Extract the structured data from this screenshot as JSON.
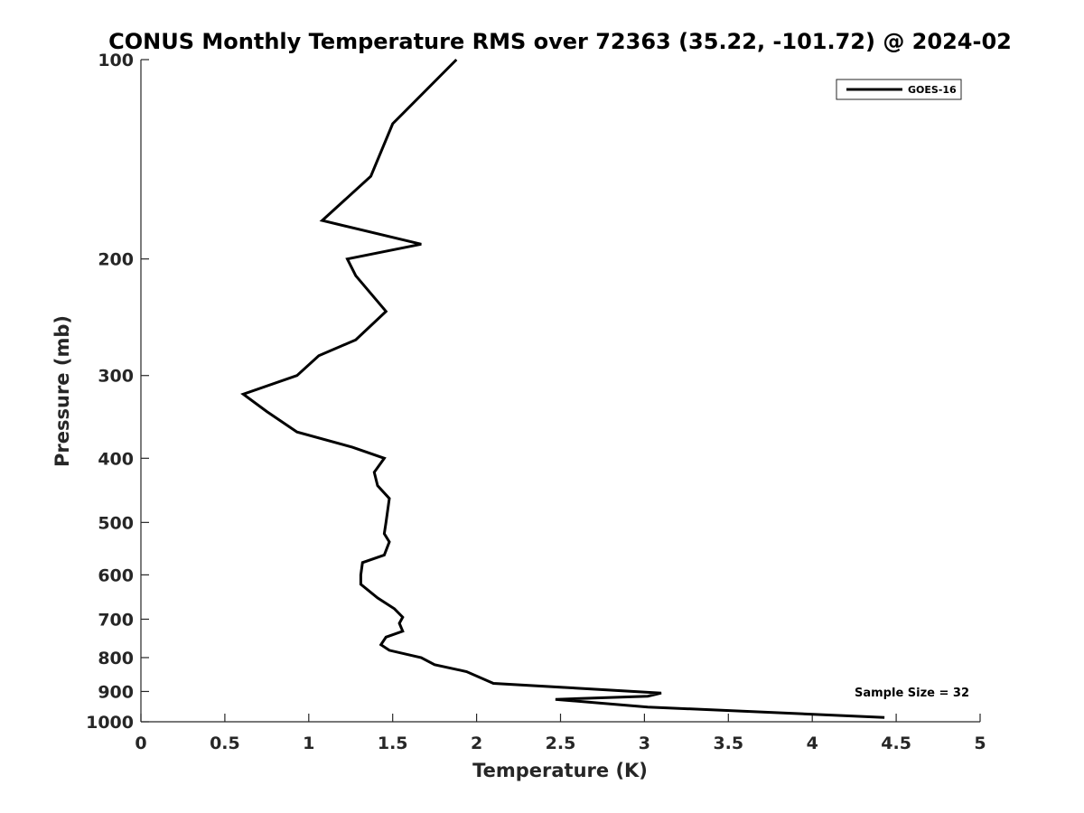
{
  "chart_data": {
    "type": "line",
    "title": "CONUS Monthly Temperature RMS over 72363 (35.22, -101.72) @ 2024-02",
    "xlabel": "Temperature (K)",
    "ylabel": "Pressure (mb)",
    "xlim": [
      0,
      5
    ],
    "ylim": [
      100,
      1000
    ],
    "y_scale": "log",
    "y_reversed": true,
    "x_ticks": [
      0,
      0.5,
      1,
      1.5,
      2,
      2.5,
      3,
      3.5,
      4,
      4.5,
      5
    ],
    "x_tick_labels": [
      "0",
      "0.5",
      "1",
      "1.5",
      "2",
      "2.5",
      "3",
      "3.5",
      "4",
      "4.5",
      "5"
    ],
    "y_ticks": [
      100,
      200,
      300,
      400,
      500,
      600,
      700,
      800,
      900,
      1000
    ],
    "y_tick_labels": [
      "100",
      "200",
      "300",
      "400",
      "500",
      "600",
      "700",
      "800",
      "900",
      "1000"
    ],
    "grid": false,
    "legend_position": "top-right",
    "series": [
      {
        "name": "GOES-16",
        "color": "#000000",
        "points": [
          [
            1.88,
            100
          ],
          [
            1.5,
            125
          ],
          [
            1.37,
            150
          ],
          [
            1.08,
            175
          ],
          [
            1.67,
            190
          ],
          [
            1.23,
            200
          ],
          [
            1.28,
            212
          ],
          [
            1.46,
            240
          ],
          [
            1.28,
            265
          ],
          [
            1.06,
            280
          ],
          [
            0.93,
            300
          ],
          [
            0.61,
            320
          ],
          [
            0.75,
            340
          ],
          [
            0.93,
            365
          ],
          [
            1.26,
            385
          ],
          [
            1.45,
            400
          ],
          [
            1.39,
            420
          ],
          [
            1.41,
            440
          ],
          [
            1.48,
            460
          ],
          [
            1.46,
            500
          ],
          [
            1.45,
            520
          ],
          [
            1.48,
            535
          ],
          [
            1.45,
            560
          ],
          [
            1.32,
            575
          ],
          [
            1.31,
            600
          ],
          [
            1.31,
            620
          ],
          [
            1.41,
            650
          ],
          [
            1.51,
            675
          ],
          [
            1.56,
            695
          ],
          [
            1.54,
            710
          ],
          [
            1.56,
            730
          ],
          [
            1.46,
            745
          ],
          [
            1.43,
            765
          ],
          [
            1.48,
            780
          ],
          [
            1.67,
            800
          ],
          [
            1.75,
            820
          ],
          [
            1.94,
            840
          ],
          [
            2.1,
            875
          ],
          [
            3.1,
            905
          ],
          [
            3.02,
            915
          ],
          [
            2.47,
            925
          ],
          [
            3.02,
            950
          ],
          [
            4.43,
            985
          ]
        ]
      }
    ],
    "annotations": [
      "Sample Size = 32"
    ]
  }
}
